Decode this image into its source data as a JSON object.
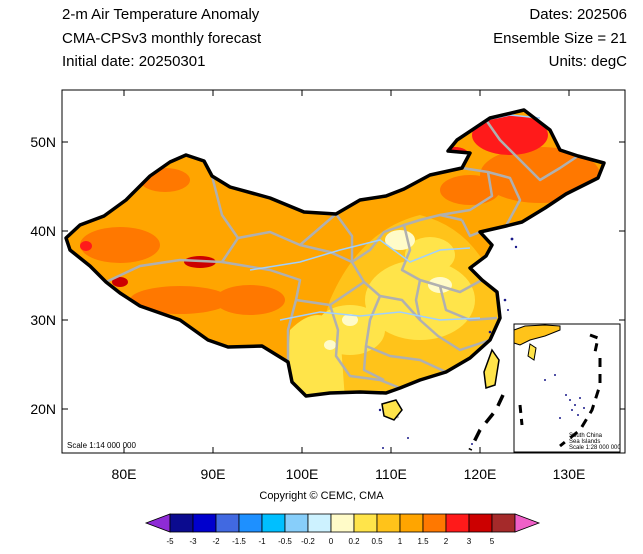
{
  "header": {
    "title_line1": "2-m Air Temperature Anomaly",
    "title_line2": "CMA-CPSv3 monthly forecast",
    "title_line3": "Initial date: 20250301",
    "right_line1": "Dates: 202506",
    "right_line2": "Ensemble Size = 21",
    "right_line3": "Units: degC"
  },
  "map": {
    "lat_ticks": [
      "50N",
      "40N",
      "30N",
      "20N"
    ],
    "lon_ticks": [
      "80E",
      "90E",
      "100E",
      "110E",
      "120E",
      "130E"
    ],
    "scale_label": "Scale 1:14 000 000",
    "inset": {
      "label1": "South China",
      "label2": "Sea Islands",
      "label3": "Scale 1:28 000 000"
    }
  },
  "copyright": "Copyright © CEMC, CMA",
  "colorbar": {
    "labels": [
      "-5",
      "-3",
      "-2",
      "-1.5",
      "-1",
      "-0.5",
      "-0.2",
      "0",
      "0.2",
      "0.5",
      "1",
      "1.5",
      "2",
      "3",
      "5"
    ],
    "colors": [
      "#8e2bd6",
      "#0b0b8f",
      "#0000cd",
      "#4169e1",
      "#1e90ff",
      "#00bfff",
      "#87cefa",
      "#cdf2ff",
      "#fffbc8",
      "#ffe44a",
      "#ffc31a",
      "#ffa500",
      "#ff7800",
      "#ff1a1a",
      "#cc0000",
      "#a52a2a",
      "#f060c8"
    ]
  }
}
